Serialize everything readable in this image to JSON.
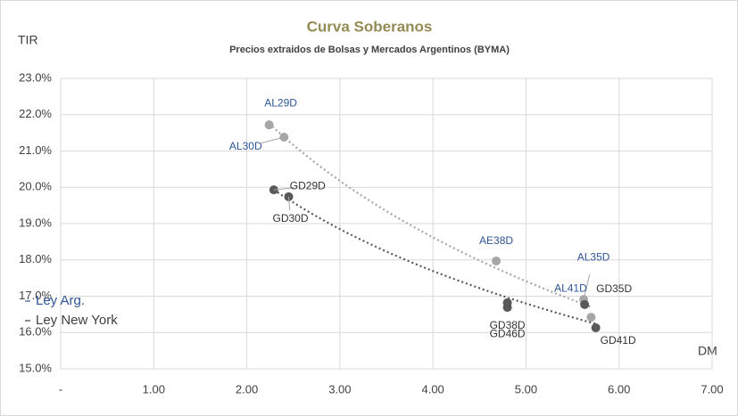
{
  "chart_data": {
    "type": "scatter",
    "title": "Curva Soberanos",
    "subtitle": "Precios extraidos de Bolsas y Mercados Argentinos (BYMA)",
    "y_label": "TIR",
    "x_label": "DM",
    "xlim": [
      0,
      7
    ],
    "xticks": [
      {
        "value": 0,
        "label": "-"
      },
      {
        "value": 1,
        "label": "1.00"
      },
      {
        "value": 2,
        "label": "2.00"
      },
      {
        "value": 3,
        "label": "3.00"
      },
      {
        "value": 4,
        "label": "4.00"
      },
      {
        "value": 5,
        "label": "5.00"
      },
      {
        "value": 6,
        "label": "6.00"
      },
      {
        "value": 7,
        "label": "7.00"
      }
    ],
    "ylim": [
      15,
      23
    ],
    "yticks": [
      {
        "value": 15,
        "label": "15.0%"
      },
      {
        "value": 16,
        "label": "16.0%"
      },
      {
        "value": 17,
        "label": "17.0%"
      },
      {
        "value": 18,
        "label": "18.0%"
      },
      {
        "value": 19,
        "label": "19.0%"
      },
      {
        "value": 20,
        "label": "20.0%"
      },
      {
        "value": 21,
        "label": "21.0%"
      },
      {
        "value": 22,
        "label": "22.0%"
      },
      {
        "value": 23,
        "label": "23.0%"
      }
    ],
    "grid": true,
    "series": [
      {
        "name": "Ley Arg.",
        "color": "#a6a6a6",
        "label_color": "#2f5597",
        "labels": [
          "AL29D",
          "AL30D",
          "AE38D",
          "AL35D",
          "AL41D"
        ],
        "x": [
          2.24,
          2.4,
          4.68,
          5.62,
          5.7
        ],
        "values": [
          21.72,
          21.38,
          17.97,
          16.91,
          16.42
        ]
      },
      {
        "name": "Ley New York",
        "color": "#595959",
        "label_color": "#333333",
        "labels": [
          "GD29D",
          "GD30D",
          "GD38D",
          "GD46D",
          "GD35D",
          "GD41D"
        ],
        "x": [
          2.29,
          2.45,
          4.8,
          4.8,
          5.63,
          5.75
        ],
        "values": [
          19.93,
          19.74,
          16.82,
          16.69,
          16.77,
          16.13
        ]
      }
    ]
  }
}
